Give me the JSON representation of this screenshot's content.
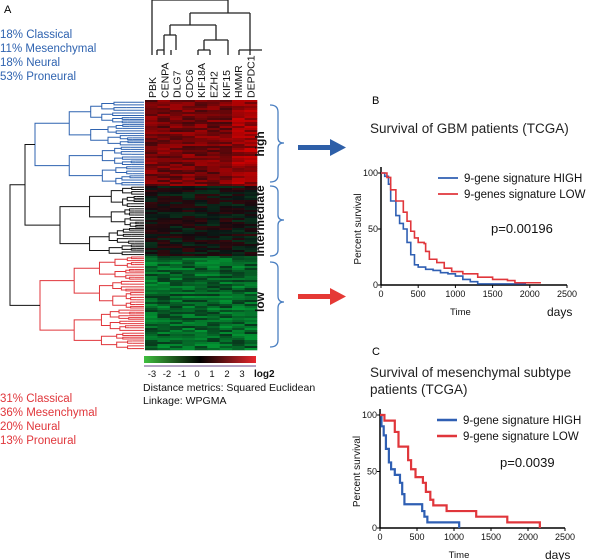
{
  "panel_a": {
    "label": "A",
    "genes": [
      "PBK",
      "CENPA",
      "DLG7",
      "CDC6",
      "KIF18A",
      "EZH2",
      "KIF15",
      "HMMR",
      "DEPDC1"
    ],
    "top_cluster_stats": [
      "18% Classical",
      "11% Mesenchymal",
      "18% Neural",
      "53% Proneural"
    ],
    "bottom_cluster_stats": [
      "31% Classical",
      "36% Mesenchymal",
      "20% Neural",
      "13% Proneural"
    ],
    "groups": [
      "high",
      "intermediate",
      "low"
    ],
    "colorbar_ticks": [
      "-3",
      "-2",
      "-1",
      "0",
      "1",
      "2",
      "3"
    ],
    "colorbar_unit": "log2",
    "distance_note": "Distance metrics: Squared Euclidean",
    "linkage_note": "Linkage: WPGMA",
    "colors": {
      "high": "#2f63b0",
      "low": "#e0363b",
      "arrow_blue": "#2e5fa8",
      "arrow_red": "#e53935"
    }
  },
  "chart_data": [
    {
      "panel": "B",
      "type": "line",
      "title": "Survival of GBM patients (TCGA)",
      "xlabel": "Time",
      "xunit": "days",
      "ylabel": "Percent survival",
      "xlim": [
        0,
        2500
      ],
      "ylim": [
        0,
        100
      ],
      "xticks": [
        0,
        500,
        1000,
        1500,
        2000,
        2500
      ],
      "yticks": [
        0,
        50,
        100
      ],
      "annotation": "p=0.00196",
      "legend_position": "top-right",
      "series": [
        {
          "name": "9-gene signature HIGH",
          "color": "#2f5fb3",
          "points": [
            [
              0,
              100
            ],
            [
              50,
              97
            ],
            [
              100,
              90
            ],
            [
              130,
              75
            ],
            [
              200,
              62
            ],
            [
              250,
              55
            ],
            [
              300,
              50
            ],
            [
              350,
              38
            ],
            [
              400,
              27
            ],
            [
              450,
              18
            ],
            [
              500,
              16
            ],
            [
              600,
              14
            ],
            [
              700,
              13
            ],
            [
              800,
              11
            ],
            [
              900,
              10
            ],
            [
              1000,
              8
            ],
            [
              1100,
              5
            ],
            [
              1200,
              3
            ],
            [
              1300,
              1
            ],
            [
              1950,
              1
            ]
          ]
        },
        {
          "name": "9-genes signature LOW",
          "color": "#e0363b",
          "points": [
            [
              0,
              100
            ],
            [
              80,
              96
            ],
            [
              130,
              85
            ],
            [
              200,
              75
            ],
            [
              300,
              65
            ],
            [
              350,
              57
            ],
            [
              400,
              48
            ],
            [
              450,
              42
            ],
            [
              500,
              38
            ],
            [
              580,
              37
            ],
            [
              600,
              30
            ],
            [
              650,
              23
            ],
            [
              750,
              20
            ],
            [
              850,
              15
            ],
            [
              950,
              12
            ],
            [
              1100,
              10
            ],
            [
              1300,
              7
            ],
            [
              1500,
              5
            ],
            [
              1700,
              4
            ],
            [
              1800,
              2
            ],
            [
              2150,
              2
            ]
          ]
        }
      ]
    },
    {
      "panel": "C",
      "type": "line",
      "title": "Survival of mesenchymal subtype patients (TCGA)",
      "title_lines": [
        "Survival of mesenchymal subtype",
        "patients (TCGA)"
      ],
      "xlabel": "Time",
      "xunit": "days",
      "ylabel": "Percent survival",
      "xlim": [
        0,
        2500
      ],
      "ylim": [
        0,
        100
      ],
      "xticks": [
        0,
        500,
        1000,
        1500,
        2000,
        2500
      ],
      "yticks": [
        0,
        50,
        100
      ],
      "annotation": "p=0.0039",
      "legend_position": "top-right",
      "series": [
        {
          "name": "9-gene signature HIGH",
          "color": "#2f5fb3",
          "points": [
            [
              0,
              100
            ],
            [
              20,
              90
            ],
            [
              50,
              82
            ],
            [
              80,
              70
            ],
            [
              120,
              58
            ],
            [
              150,
              52
            ],
            [
              200,
              47
            ],
            [
              270,
              40
            ],
            [
              300,
              30
            ],
            [
              330,
              21
            ],
            [
              550,
              21
            ],
            [
              570,
              15
            ],
            [
              600,
              10
            ],
            [
              640,
              5
            ],
            [
              1070,
              5
            ],
            [
              1070,
              0
            ]
          ]
        },
        {
          "name": "9-gene signature LOW",
          "color": "#e0363b",
          "points": [
            [
              0,
              100
            ],
            [
              60,
              95
            ],
            [
              180,
              95
            ],
            [
              200,
              85
            ],
            [
              250,
              72
            ],
            [
              350,
              72
            ],
            [
              380,
              60
            ],
            [
              420,
              52
            ],
            [
              480,
              45
            ],
            [
              550,
              45
            ],
            [
              580,
              40
            ],
            [
              620,
              32
            ],
            [
              680,
              25
            ],
            [
              720,
              20
            ],
            [
              900,
              15
            ],
            [
              1300,
              10
            ],
            [
              1720,
              5
            ],
            [
              2160,
              5
            ],
            [
              2160,
              0
            ]
          ]
        }
      ]
    }
  ]
}
